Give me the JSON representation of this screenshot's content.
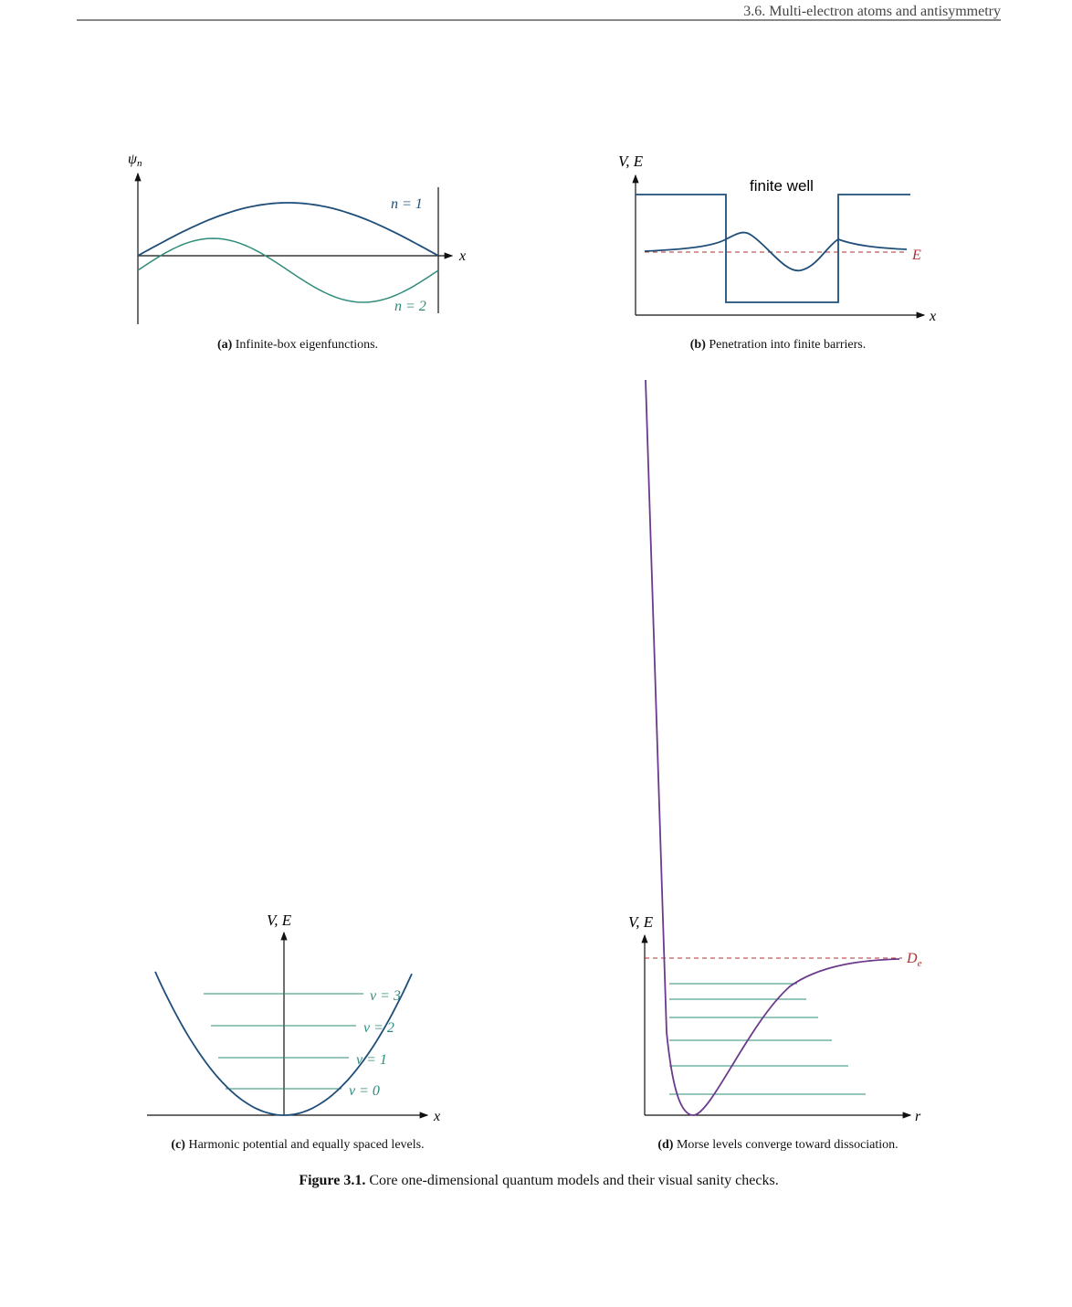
{
  "header": {
    "running_title": "3.6.  Multi-electron atoms and antisymmetry"
  },
  "panels": [
    {
      "label": "(a)",
      "caption": "Infinite-box eigenfunctions.",
      "y_axis": {
        "symbol": "ψ",
        "subscript": "n"
      },
      "x_axis": "x",
      "curves": [
        "n = 1",
        "n = 2"
      ]
    },
    {
      "label": "(b)",
      "caption": "Penetration into finite barriers.",
      "y_axis": "V, E",
      "x_axis": "x",
      "title": "finite well",
      "energy": "E"
    },
    {
      "label": "(c)",
      "caption": "Harmonic potential and equally spaced levels.",
      "y_axis": "V, E",
      "x_axis": "x",
      "levels": [
        "v = 0",
        "v = 1",
        "v = 2",
        "v = 3"
      ]
    },
    {
      "label": "(d)",
      "caption": "Morse levels converge toward dissociation.",
      "y_axis": "V, E",
      "x_axis": "r",
      "dissociation": {
        "symbol": "D",
        "subscript": "e"
      }
    }
  ],
  "figure_caption": {
    "label": "Figure 3.1.",
    "text": "Core one-dimensional quantum models and their visual sanity checks."
  }
}
